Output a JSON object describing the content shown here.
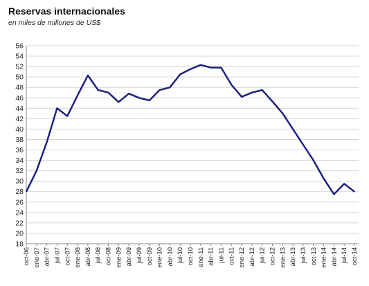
{
  "chart_data": {
    "type": "line",
    "title": "Reservas internacionales",
    "subtitle": "en miles de millones de US$",
    "xlabel": "",
    "ylabel": "",
    "ylim": [
      18,
      56
    ],
    "yticks": [
      18,
      20,
      22,
      24,
      26,
      28,
      30,
      32,
      34,
      36,
      38,
      40,
      42,
      44,
      46,
      48,
      50,
      52,
      54,
      56
    ],
    "grid": "horizontal",
    "line_color": "#1c2180",
    "xtick_labels": [
      "oct-06",
      "ene-07",
      "abr-07",
      "jul-07",
      "oct-07",
      "ene-08",
      "abr-08",
      "jul-08",
      "oct-08",
      "ene-09",
      "abr-09",
      "jul-09",
      "oct-09",
      "ene-10",
      "abr-10",
      "jul-10",
      "oct-10",
      "ene-11",
      "abr-11",
      "jul-11",
      "oct-11",
      "ene-12",
      "abr-12",
      "jul-12",
      "oct-12",
      "ene-13",
      "abr-13",
      "jul-13",
      "oct-13",
      "ene-14",
      "abr-14",
      "jul-14",
      "oct-14"
    ],
    "series": [
      {
        "x": [
          "oct-06",
          "ene-07",
          "abr-07",
          "jul-07",
          "oct-07",
          "ene-08",
          "abr-08",
          "jul-08",
          "oct-08",
          "ene-09",
          "abr-09",
          "jul-09",
          "oct-09",
          "ene-10",
          "abr-10",
          "jul-10",
          "oct-10",
          "ene-11",
          "abr-11",
          "jul-11",
          "oct-11",
          "ene-12",
          "abr-12",
          "jul-12",
          "oct-12",
          "ene-13",
          "abr-13",
          "jul-13",
          "oct-13",
          "ene-14",
          "abr-14",
          "jul-14",
          "oct-14"
        ],
        "values": [
          28.0,
          32.0,
          37.5,
          44.0,
          42.5,
          46.5,
          50.3,
          47.5,
          47.0,
          45.2,
          46.8,
          46.0,
          45.5,
          47.5,
          48.0,
          50.5,
          51.5,
          52.3,
          51.8,
          51.8,
          48.5,
          46.2,
          47.0,
          47.5,
          45.3,
          43.0,
          40.0,
          37.0,
          34.0,
          30.5,
          27.5,
          29.5,
          28.0
        ]
      }
    ]
  }
}
